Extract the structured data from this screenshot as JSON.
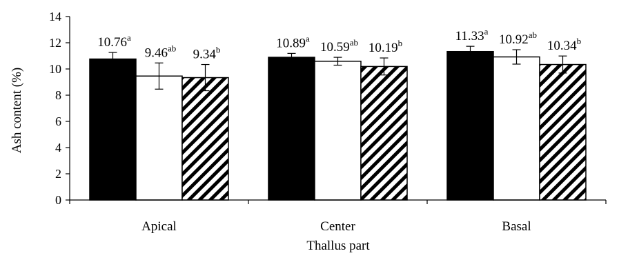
{
  "chart_data": {
    "type": "bar",
    "xlabel": "Thallus part",
    "ylabel": "Ash content (%)",
    "ylim": [
      0,
      14
    ],
    "yticks": [
      0,
      2,
      4,
      6,
      8,
      10,
      12,
      14
    ],
    "categories": [
      "Apical",
      "Center",
      "Basal"
    ],
    "series_styles": [
      {
        "fill": "#000000",
        "pattern": "solid"
      },
      {
        "fill": "#ffffff",
        "pattern": "empty"
      },
      {
        "fill": "#ffffff",
        "pattern": "diagonal-stripes"
      }
    ],
    "series": [
      {
        "values": [
          10.76,
          10.89,
          11.33
        ],
        "errors": [
          0.5,
          0.3,
          0.4
        ],
        "labels": [
          "10.76",
          "10.89",
          "11.33"
        ],
        "letters": [
          "a",
          "a",
          "a"
        ]
      },
      {
        "values": [
          9.46,
          10.59,
          10.92
        ],
        "errors": [
          1.0,
          0.3,
          0.55
        ],
        "labels": [
          "9.46",
          "10.59",
          "10.92"
        ],
        "letters": [
          "ab",
          "ab",
          "ab"
        ]
      },
      {
        "values": [
          9.34,
          10.19,
          10.34
        ],
        "errors": [
          1.0,
          0.65,
          0.65
        ],
        "labels": [
          "9.34",
          "10.19",
          "10.34"
        ],
        "letters": [
          "b",
          "b",
          "b"
        ]
      }
    ],
    "grid": false,
    "legend": "none"
  }
}
